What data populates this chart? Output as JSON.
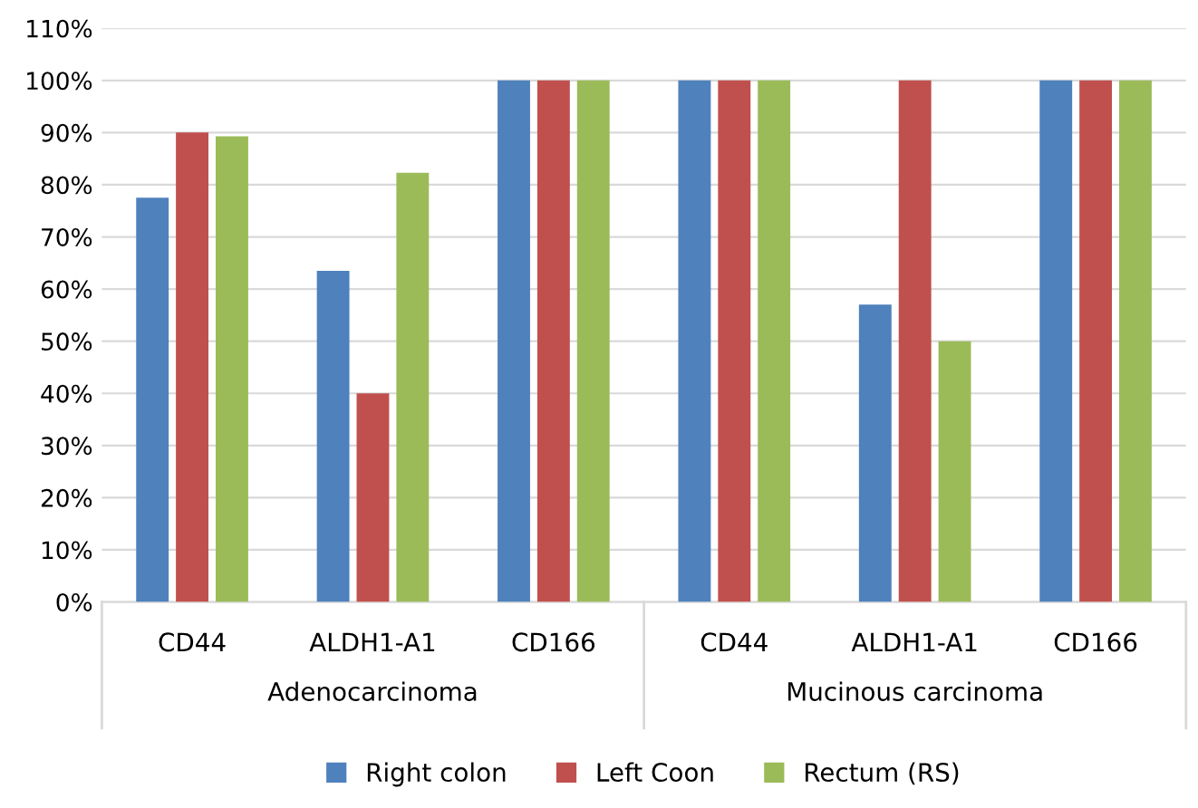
{
  "chart_data": {
    "type": "bar",
    "categories": [
      "CD44",
      "ALDH1-A1",
      "CD166",
      "CD44",
      "ALDH1-A1",
      "CD166"
    ],
    "annotations": [
      "Adenocarcinoma",
      "Mucinous carcinoma"
    ],
    "series": [
      {
        "name": "Right colon",
        "color": "#4f81bd",
        "values": [
          77.5,
          63.5,
          100,
          100,
          57,
          100
        ]
      },
      {
        "name": "Left Coon",
        "color": "#c0504d",
        "values": [
          90,
          40,
          100,
          100,
          100,
          100
        ]
      },
      {
        "name": "Rectum (RS)",
        "color": "#9bbb59",
        "values": [
          89.3,
          82.3,
          100,
          100,
          50,
          100
        ]
      }
    ],
    "ylim": [
      0,
      110
    ],
    "yticks": [
      {
        "value": 0,
        "label": "0%"
      },
      {
        "value": 10,
        "label": "10%"
      },
      {
        "value": 20,
        "label": "20%"
      },
      {
        "value": 30,
        "label": "30%"
      },
      {
        "value": 40,
        "label": "40%"
      },
      {
        "value": 50,
        "label": "50%"
      },
      {
        "value": 60,
        "label": "60%"
      },
      {
        "value": 70,
        "label": "70%"
      },
      {
        "value": 80,
        "label": "80%"
      },
      {
        "value": 90,
        "label": "90%"
      },
      {
        "value": 100,
        "label": "100%"
      },
      {
        "value": 110,
        "label": "110%"
      }
    ],
    "grid": "y",
    "legend": "bottom"
  }
}
